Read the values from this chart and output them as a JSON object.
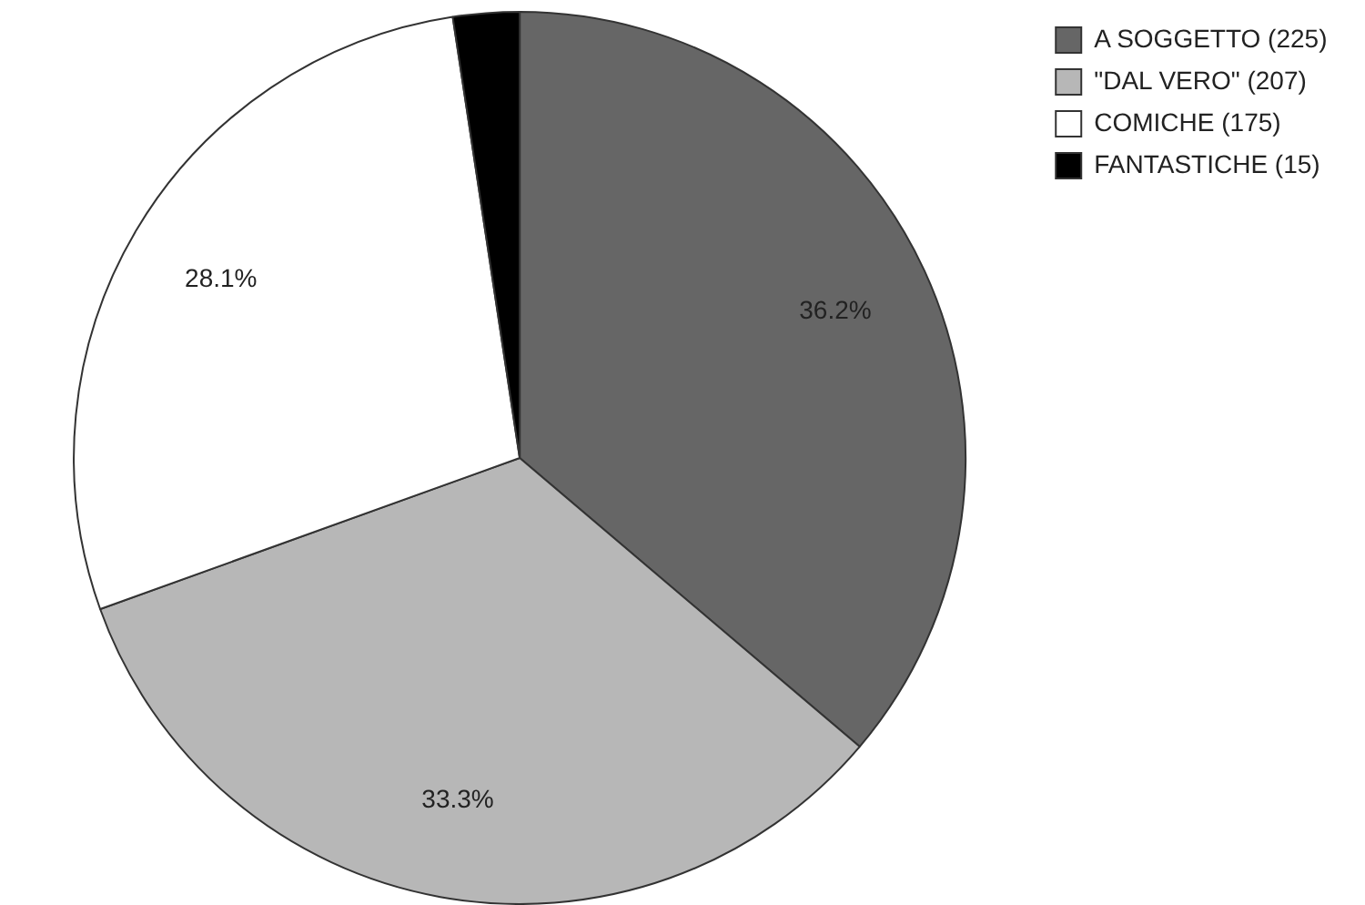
{
  "chart_data": {
    "type": "pie",
    "categories": [
      "A SOGGETTO (225)",
      "\"DAL VERO\" (207)",
      "COMICHE (175)",
      "FANTASTICHE (15)"
    ],
    "values": [
      36.2,
      33.3,
      28.1,
      2.4
    ],
    "colors": [
      "#666666",
      "#b7b7b7",
      "#ffffff",
      "#000000"
    ],
    "value_labels": [
      "36.2%",
      "33.3%",
      "28.1%",
      null
    ],
    "legend": "top right"
  }
}
